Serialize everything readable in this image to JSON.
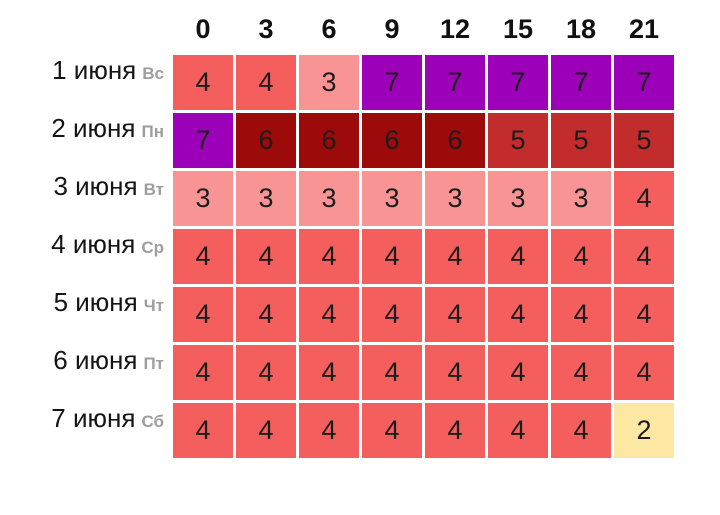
{
  "chart_data": {
    "type": "heatmap",
    "x": [
      "0",
      "3",
      "6",
      "9",
      "12",
      "15",
      "18",
      "21"
    ],
    "rows": [
      {
        "date": "1 июня",
        "weekday": "Вс",
        "values": [
          4,
          4,
          3,
          7,
          7,
          7,
          7,
          7
        ]
      },
      {
        "date": "2 июня",
        "weekday": "Пн",
        "values": [
          7,
          6,
          6,
          6,
          6,
          5,
          5,
          5
        ]
      },
      {
        "date": "3 июня",
        "weekday": "Вт",
        "values": [
          3,
          3,
          3,
          3,
          3,
          3,
          3,
          4
        ]
      },
      {
        "date": "4 июня",
        "weekday": "Ср",
        "values": [
          4,
          4,
          4,
          4,
          4,
          4,
          4,
          4
        ]
      },
      {
        "date": "5 июня",
        "weekday": "Чт",
        "values": [
          4,
          4,
          4,
          4,
          4,
          4,
          4,
          4
        ]
      },
      {
        "date": "6 июня",
        "weekday": "Пт",
        "values": [
          4,
          4,
          4,
          4,
          4,
          4,
          4,
          4
        ]
      },
      {
        "date": "7 июня",
        "weekday": "Сб",
        "values": [
          4,
          4,
          4,
          4,
          4,
          4,
          4,
          2
        ]
      }
    ],
    "legend_position": "none",
    "grid": false,
    "color_scale": {
      "2": "#fce8a2",
      "3": "#f99494",
      "4": "#f45f5e",
      "5": "#c32c2c",
      "6": "#9d0a0a",
      "7": "#9c00b8"
    },
    "cell_text_color": "#1c1c1c",
    "date_text_color": "#141414",
    "weekday_text_color": "#9e9e9e",
    "header_text_color": "#111111",
    "gap_color": "#ffffff"
  }
}
